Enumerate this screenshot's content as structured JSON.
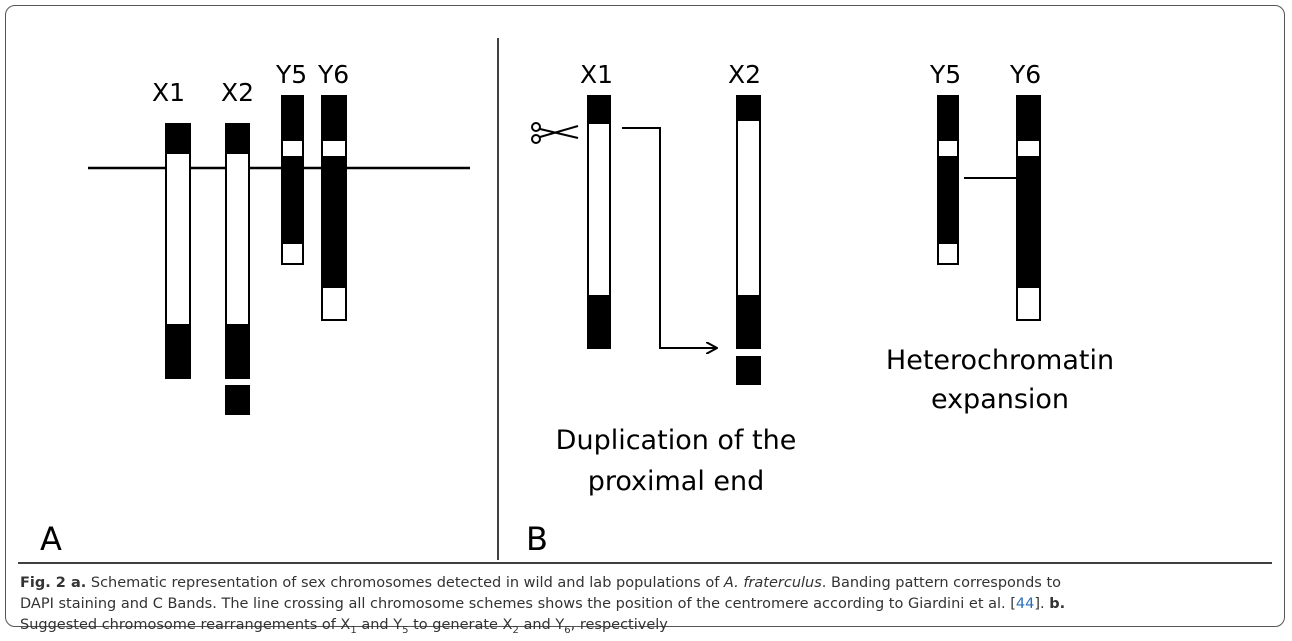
{
  "panel_a": {
    "letter": "A",
    "labels": [
      "X1",
      "X2",
      "Y5",
      "Y6"
    ]
  },
  "panel_b": {
    "letter": "B",
    "labels": [
      "X1",
      "X2",
      "Y5",
      "Y6"
    ],
    "note_left": [
      "Duplication of the",
      "proximal end"
    ],
    "note_right": [
      "Heterochromatin",
      "expansion"
    ]
  },
  "caption": {
    "lines": [
      [
        {
          "text": "Fig. 2 a.",
          "style": "bold"
        },
        {
          "text": " Schematic representation of sex chromosomes detected in wild and lab populations of "
        },
        {
          "text": "A. fraterculus",
          "style": "italic"
        },
        {
          "text": ". Banding pattern corresponds to"
        }
      ],
      [
        {
          "text": "DAPI staining and C Bands. The line crossing all chromosome schemes shows the position of the centromere according to Giardini et al. ["
        },
        {
          "text": "44",
          "style": "link"
        },
        {
          "text": "]. "
        },
        {
          "text": "b.",
          "style": "bold"
        }
      ],
      [
        {
          "text": "Suggested chromosome rearrangements of X"
        },
        {
          "text": "1",
          "style": "sub"
        },
        {
          "text": " and Y"
        },
        {
          "text": "5",
          "style": "sub"
        },
        {
          "text": " to generate X"
        },
        {
          "text": "2",
          "style": "sub"
        },
        {
          "text": " and Y"
        },
        {
          "text": "6",
          "style": "sub"
        },
        {
          "text": ", respectively"
        }
      ]
    ]
  }
}
